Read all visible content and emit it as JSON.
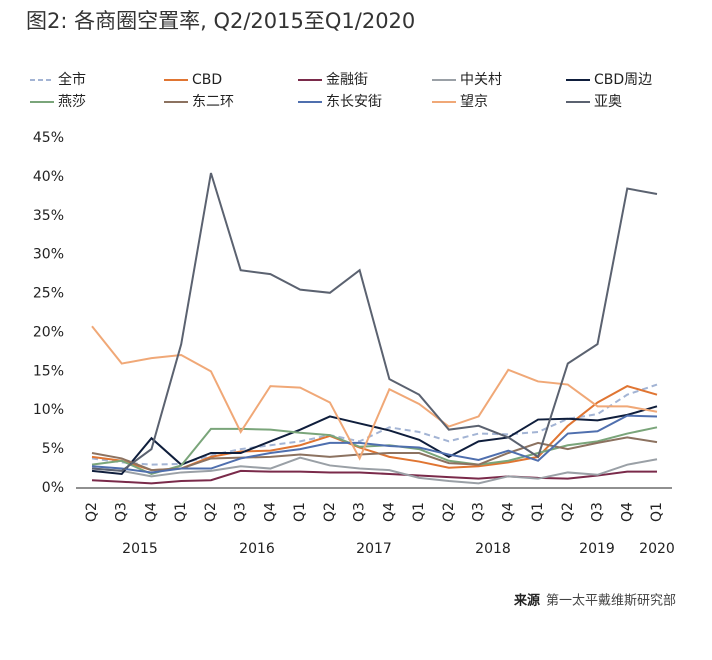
{
  "chart_data": {
    "type": "line",
    "title": "图2: 各商圈空置率, Q2/2015至Q1/2020",
    "categories": [
      "Q2",
      "Q3",
      "Q4",
      "Q1",
      "Q2",
      "Q3",
      "Q4",
      "Q1",
      "Q2",
      "Q3",
      "Q4",
      "Q1",
      "Q2",
      "Q3",
      "Q4",
      "Q1",
      "Q2",
      "Q3",
      "Q4",
      "Q1"
    ],
    "year_labels": [
      "2015",
      "2016",
      "2017",
      "2018",
      "2019",
      "2020"
    ],
    "ylim": [
      0,
      45
    ],
    "yticks": [
      {
        "value": 0,
        "label": "0%"
      },
      {
        "value": 5,
        "label": "5%"
      },
      {
        "value": 10,
        "label": "10%"
      },
      {
        "value": 15,
        "label": "15%"
      },
      {
        "value": 20,
        "label": "20%"
      },
      {
        "value": 25,
        "label": "25%"
      },
      {
        "value": 30,
        "label": "30%"
      },
      {
        "value": 35,
        "label": "35%"
      },
      {
        "value": 40,
        "label": "40%"
      },
      {
        "value": 45,
        "label": "45%"
      }
    ],
    "series": [
      {
        "name": "全市",
        "color": "#a3b4d4",
        "dashed": true,
        "values": [
          3.8,
          3.3,
          3,
          3.1,
          4.2,
          5,
          5.5,
          6,
          6.8,
          6,
          7.8,
          7.2,
          6,
          7,
          6.9,
          7.2,
          8.9,
          9.5,
          12,
          13.3
        ]
      },
      {
        "name": "CBD",
        "color": "#e07532",
        "values": [
          4,
          3.5,
          2.3,
          2.5,
          4,
          4.7,
          4.8,
          5.5,
          6.7,
          5.2,
          4,
          3.4,
          2.6,
          2.8,
          3.3,
          4,
          8,
          11,
          13.1,
          12
        ]
      },
      {
        "name": "金融街",
        "color": "#7a2a4a",
        "values": [
          1,
          0.8,
          0.6,
          0.9,
          1,
          2.2,
          2.1,
          2.1,
          2,
          2,
          1.8,
          1.6,
          1.4,
          1.2,
          1.5,
          1.3,
          1.2,
          1.6,
          2.1,
          2.1
        ]
      },
      {
        "name": "中关村",
        "color": "#9aa0a6",
        "values": [
          2.5,
          2.2,
          1.5,
          2,
          2.2,
          2.8,
          2.5,
          3.9,
          2.9,
          2.5,
          2.3,
          1.3,
          0.9,
          0.6,
          1.5,
          1.2,
          2,
          1.7,
          3,
          3.7
        ]
      },
      {
        "name": "CBD周边",
        "color": "#0f1e3c",
        "values": [
          2.2,
          1.8,
          6.4,
          3,
          4.5,
          4.5,
          6,
          7.5,
          9.2,
          8.3,
          7.4,
          6.2,
          4,
          6,
          6.5,
          8.8,
          8.9,
          8.7,
          9.4,
          10.5
        ]
      },
      {
        "name": "燕莎",
        "color": "#7aa57a",
        "values": [
          3,
          3.5,
          1.8,
          2.9,
          7.6,
          7.6,
          7.5,
          7.1,
          6.8,
          5.3,
          5.5,
          5,
          3.5,
          3,
          3.5,
          4.5,
          5.5,
          6,
          7,
          7.8
        ]
      },
      {
        "name": "东二环",
        "color": "#8c7260",
        "values": [
          4.5,
          3.8,
          2.3,
          2.5,
          3.8,
          3.9,
          4,
          4.3,
          4,
          4.3,
          4.5,
          4.5,
          3.2,
          3,
          4.5,
          5.8,
          5,
          5.8,
          6.5,
          5.9
        ]
      },
      {
        "name": "东长安街",
        "color": "#4f6fae",
        "values": [
          2.8,
          2.5,
          2,
          2.5,
          2.5,
          3.8,
          4.5,
          5,
          5.8,
          5.8,
          5.4,
          5.2,
          4.3,
          3.6,
          4.8,
          3.5,
          7,
          7.3,
          9.3,
          9.2
        ]
      },
      {
        "name": "望京",
        "color": "#f0a877",
        "values": [
          20.8,
          16,
          16.7,
          17.1,
          15,
          7.2,
          13.1,
          12.9,
          11,
          3.8,
          12.7,
          10.8,
          7.9,
          9.2,
          15.2,
          13.7,
          13.3,
          10.5,
          10.5,
          9.8
        ]
      },
      {
        "name": "亚奥",
        "color": "#5b6270",
        "values": [
          2.5,
          2.2,
          5,
          18.5,
          40.5,
          28,
          27.5,
          25.5,
          25.1,
          28,
          14,
          12,
          7.5,
          8,
          6.5,
          4,
          16,
          18.5,
          38.5,
          37.8
        ]
      }
    ],
    "source_label": "来源",
    "source_text": "第一太平戴维斯研究部"
  }
}
